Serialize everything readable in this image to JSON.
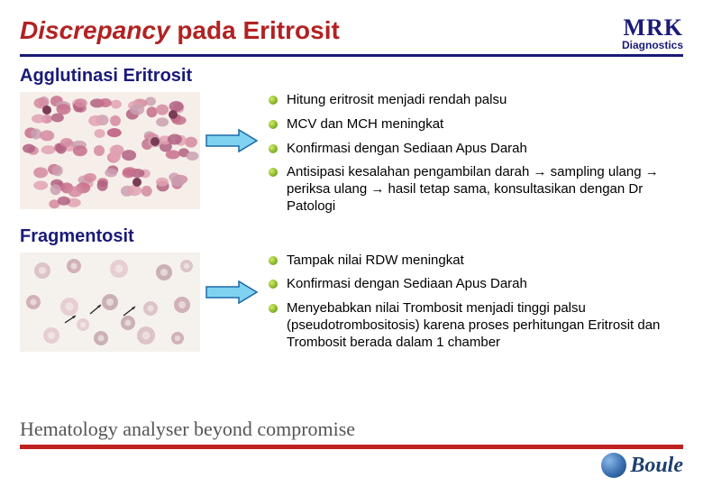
{
  "title": {
    "italic": "Discrepancy",
    "rest": " pada Eritrosit"
  },
  "logo": {
    "top": "MRK",
    "bottom": "Diagnostics"
  },
  "section1": {
    "heading": "Agglutinasi Eritrosit",
    "bullets": [
      "Hitung eritrosit menjadi rendah palsu",
      "MCV dan MCH meningkat",
      "Konfirmasi dengan Sediaan Apus Darah",
      "Antisipasi kesalahan pengambilan darah → sampling ulang → periksa ulang → hasil tetap sama, konsultasikan dengan Dr Patologi"
    ]
  },
  "section2": {
    "heading": "Fragmentosit",
    "bullets": [
      "Tampak nilai RDW meningkat",
      "Konfirmasi dengan Sediaan Apus Darah",
      "Menyebabkan nilai Trombosit menjadi tinggi palsu (pseudotrombositosis) karena proses perhitungan Eritrosit dan Trombosit berada dalam 1 chamber"
    ]
  },
  "footer": {
    "tagline": "Hematology analyser beyond compromise",
    "brand": "Boule"
  },
  "colors": {
    "title_red": "#b22222",
    "navy": "#1a1a7a",
    "footer_red": "#c02020",
    "arrow_fill": "#7fd3f0",
    "arrow_stroke": "#1a6aa8"
  },
  "micrograph1": {
    "bg": "#f6efe9",
    "cell_colors": [
      "#d58aa0",
      "#c76f8c",
      "#e0a2b3",
      "#caa0b0",
      "#b06080"
    ],
    "dark": "#7a3b55"
  },
  "micrograph2": {
    "bg": "#f5f2ee",
    "cell_colors": [
      "#d7b8bf",
      "#c9a0aa",
      "#e2c4ca",
      "#bfa0a8"
    ],
    "arrow_color": "#222"
  }
}
